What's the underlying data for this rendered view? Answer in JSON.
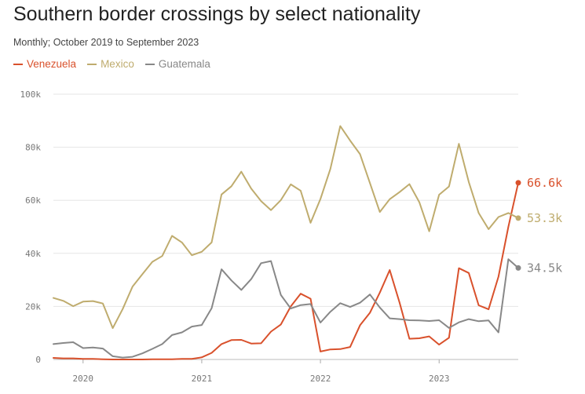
{
  "title": "Southern border crossings by select nationality",
  "subtitle": "Monthly; October 2019 to September 2023",
  "chart_data": {
    "type": "line",
    "title": "Southern border crossings by select nationality",
    "subtitle": "Monthly; October 2019 to September 2023",
    "xlabel": "",
    "ylabel": "",
    "ylim": [
      0,
      100000
    ],
    "y_ticks": [
      {
        "value": 0,
        "label": "0"
      },
      {
        "value": 20000,
        "label": "20k"
      },
      {
        "value": 40000,
        "label": "40k"
      },
      {
        "value": 60000,
        "label": "60k"
      },
      {
        "value": 80000,
        "label": "80k"
      },
      {
        "value": 100000,
        "label": "100k"
      }
    ],
    "x_ticks": [
      {
        "month": 3,
        "label": "2020"
      },
      {
        "month": 15,
        "label": "2021"
      },
      {
        "month": 27,
        "label": "2022"
      },
      {
        "month": 39,
        "label": "2023"
      }
    ],
    "grid": "horizontal",
    "legend": "top-left",
    "x": [
      "2019-10",
      "2019-11",
      "2019-12",
      "2020-01",
      "2020-02",
      "2020-03",
      "2020-04",
      "2020-05",
      "2020-06",
      "2020-07",
      "2020-08",
      "2020-09",
      "2020-10",
      "2020-11",
      "2020-12",
      "2021-01",
      "2021-02",
      "2021-03",
      "2021-04",
      "2021-05",
      "2021-06",
      "2021-07",
      "2021-08",
      "2021-09",
      "2021-10",
      "2021-11",
      "2021-12",
      "2022-01",
      "2022-02",
      "2022-03",
      "2022-04",
      "2022-05",
      "2022-06",
      "2022-07",
      "2022-08",
      "2022-09",
      "2022-10",
      "2022-11",
      "2022-12",
      "2023-01",
      "2023-02",
      "2023-03",
      "2023-04",
      "2023-05",
      "2023-06",
      "2023-07",
      "2023-08",
      "2023-09"
    ],
    "series": [
      {
        "name": "Venezuela",
        "color": "#d9512c",
        "end_label": "66.6k",
        "values": [
          600,
          400,
          400,
          200,
          200,
          100,
          0,
          0,
          0,
          0,
          100,
          100,
          100,
          200,
          200,
          800,
          2500,
          5800,
          7300,
          7400,
          6000,
          6100,
          10500,
          13200,
          20000,
          24800,
          22900,
          3000,
          3800,
          3900,
          4700,
          12900,
          17600,
          25200,
          33700,
          21400,
          7800,
          8000,
          8700,
          5600,
          8200,
          34400,
          32600,
          20400,
          18900,
          31200,
          50000,
          66600
        ]
      },
      {
        "name": "Mexico",
        "color": "#bfac6e",
        "end_label": "53.3k",
        "values": [
          23200,
          22100,
          20100,
          21800,
          22000,
          21100,
          11800,
          19000,
          27500,
          32200,
          36800,
          39000,
          46600,
          44100,
          39300,
          40600,
          44100,
          62200,
          65300,
          70800,
          64400,
          59700,
          56300,
          60100,
          66000,
          63600,
          51500,
          60500,
          71800,
          88000,
          82500,
          77400,
          66500,
          55600,
          60400,
          63100,
          66100,
          59300,
          48300,
          62100,
          65200,
          81300,
          66900,
          55200,
          49100,
          53700,
          55200,
          53300
        ]
      },
      {
        "name": "Guatemala",
        "color": "#888888",
        "end_label": "34.5k",
        "values": [
          5800,
          6200,
          6500,
          4300,
          4500,
          4100,
          1200,
          700,
          1000,
          2300,
          4000,
          5800,
          9200,
          10200,
          12400,
          13000,
          19300,
          34000,
          29800,
          26200,
          30300,
          36300,
          37100,
          24300,
          19200,
          20500,
          20900,
          13900,
          18000,
          21200,
          19800,
          21400,
          24500,
          19600,
          15500,
          15200,
          14800,
          14700,
          14500,
          14800,
          11900,
          14000,
          15200,
          14400,
          14700,
          10200,
          37800,
          34500
        ]
      }
    ]
  }
}
